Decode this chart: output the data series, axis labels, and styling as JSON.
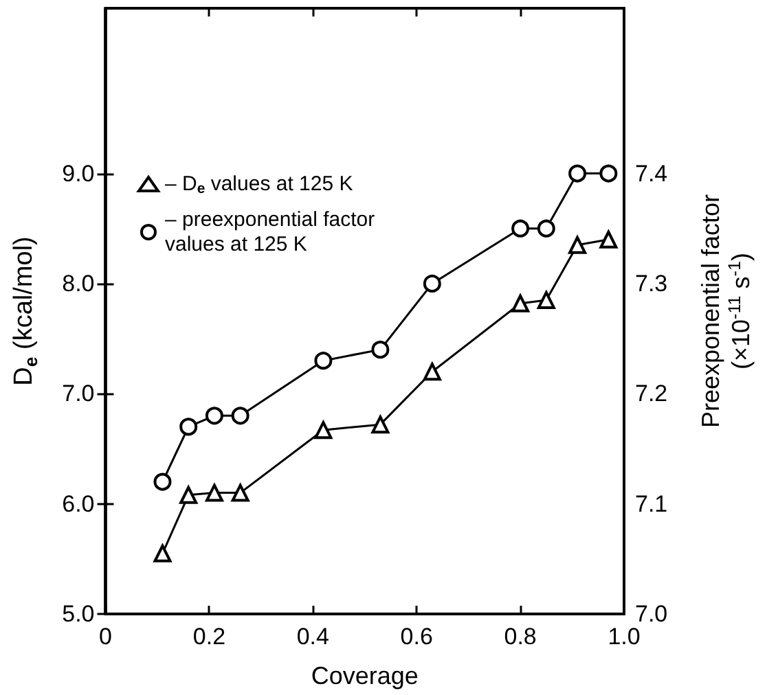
{
  "chart_data": {
    "type": "line",
    "xlabel": "Coverage",
    "ylabel": "D$_{e}$ (kcal/mol)",
    "y2label": "Preexponential factor\n(×10$^{-11}$ s$^{-1}$)",
    "xlim": [
      0,
      1.0
    ],
    "xticks": [
      0,
      0.2,
      0.4,
      0.6,
      0.8,
      {
        "value": 1,
        "label": "1.0"
      }
    ],
    "ylim": [
      5,
      10.5
    ],
    "yticks": [
      {
        "value": 5,
        "label": "5.0"
      },
      {
        "value": 6,
        "label": "6.0"
      },
      {
        "value": 7,
        "label": "7.0"
      },
      {
        "value": 8,
        "label": "8.0"
      },
      {
        "value": 9,
        "label": "9.0"
      }
    ],
    "y2lim": [
      7.0,
      7.55
    ],
    "y2ticks": [
      {
        "value": 7,
        "label": "7.0"
      },
      7.1,
      7.2,
      7.3,
      7.4
    ],
    "legend": "top left",
    "grid": false,
    "line_style": "solid",
    "series": [
      {
        "name": "– D$_{e}$ values at 125 K",
        "color": "#000000",
        "marker": "triangle",
        "x": [
          0.11,
          0.16,
          0.21,
          0.26,
          0.42,
          0.53,
          0.63,
          0.8,
          0.85,
          0.91,
          0.97
        ],
        "values": [
          5.55,
          6.08,
          6.1,
          6.1,
          6.67,
          6.72,
          7.2,
          7.82,
          7.85,
          8.35,
          8.4
        ]
      },
      {
        "name": "– preexponential factor\nvalues at 125 K",
        "color": "#000000",
        "marker": "circle",
        "axis": "y2",
        "x": [
          0.11,
          0.16,
          0.21,
          0.26,
          0.42,
          0.53,
          0.63,
          0.8,
          0.85,
          0.91,
          0.97
        ],
        "values": [
          7.12,
          7.17,
          7.18,
          7.18,
          7.23,
          7.24,
          7.3,
          7.35,
          7.35,
          7.4,
          7.4
        ]
      }
    ]
  }
}
